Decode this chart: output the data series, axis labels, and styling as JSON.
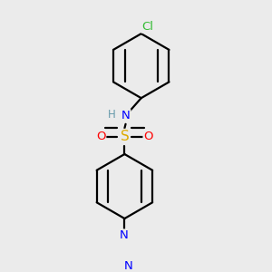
{
  "background_color": "#ebebeb",
  "atom_colors": {
    "C": "#000000",
    "N": "#0000ff",
    "O": "#ff0000",
    "S": "#ddaa00",
    "Cl": "#33bb33",
    "H": "#6699aa"
  },
  "bond_color": "#000000",
  "bond_width": 1.6,
  "figsize": [
    3.0,
    3.0
  ],
  "dpi": 100
}
